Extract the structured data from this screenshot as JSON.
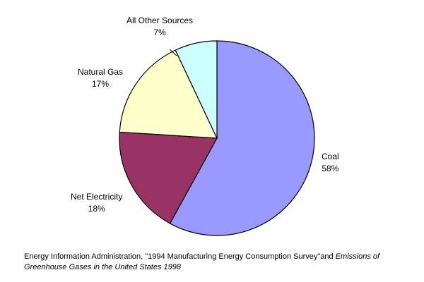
{
  "chart_data": {
    "type": "pie",
    "slices": [
      {
        "label": "Coal",
        "value": 58,
        "value_label": "58%",
        "color": "#9999ff"
      },
      {
        "label": "Net Electricity",
        "value": 18,
        "value_label": "18%",
        "color": "#993366"
      },
      {
        "label": "Natural Gas",
        "value": 17,
        "value_label": "17%",
        "color": "#ffffcc"
      },
      {
        "label": "All Other Sources",
        "value": 7,
        "value_label": "7%",
        "color": "#ccffff"
      }
    ]
  },
  "source": {
    "text_regular": "Energy Information Administration, \"1994 Manufacturing Energy Consumption Survey\"and ",
    "text_italic": "Emissions of Greenhouse Gases in the United States 1998"
  }
}
